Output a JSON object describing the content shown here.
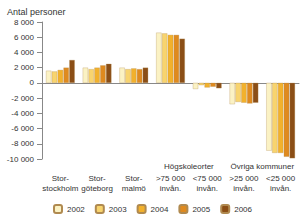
{
  "chart_data": {
    "type": "bar",
    "title": "Antal personer",
    "categories": [
      "Stor-\nstockholm",
      "Stor-\ngöteborg",
      "Stor-\nmalmö",
      ">75 000\ninvån.",
      "<75 000\ninvån.",
      ">25 000\ninvån.",
      "<25 000\ninvån."
    ],
    "annotations": [
      {
        "text": "Högskoleorter",
        "categories": [
          ">75 000\ninvån.",
          "<75 000\ninvån."
        ]
      },
      {
        "text": "Övriga kommuner",
        "categories": [
          ">25 000\ninvån.",
          "<25 000\ninvån."
        ]
      }
    ],
    "series": [
      {
        "name": "2002",
        "color": "#fbf2c4",
        "values": [
          1600,
          2000,
          2000,
          6600,
          -800,
          -2800,
          -8900
        ]
      },
      {
        "name": "2003",
        "color": "#f8d46e",
        "values": [
          1500,
          1800,
          1800,
          6500,
          -300,
          -2500,
          -9200
        ]
      },
      {
        "name": "2004",
        "color": "#f2b12c",
        "values": [
          1700,
          2000,
          1900,
          6300,
          -600,
          -2600,
          -9200
        ]
      },
      {
        "name": "2005",
        "color": "#df8a1f",
        "values": [
          2000,
          2300,
          1800,
          6300,
          -500,
          -2700,
          -9700
        ]
      },
      {
        "name": "2006",
        "color": "#8b4e16",
        "values": [
          3000,
          2500,
          2000,
          5800,
          -700,
          -2600,
          -9900
        ]
      }
    ],
    "ylim": [
      -10000,
      8000
    ],
    "yticks": [
      {
        "value": -10000,
        "label": "-10 000"
      },
      {
        "value": -8000,
        "label": "-8 000"
      },
      {
        "value": -6000,
        "label": "-6 000"
      },
      {
        "value": -4000,
        "label": "-4 000"
      },
      {
        "value": -2000,
        "label": "-2 000"
      },
      0,
      {
        "value": 2000,
        "label": "2 000"
      },
      {
        "value": 4000,
        "label": "4 000"
      },
      {
        "value": 6000,
        "label": "6 000"
      },
      {
        "value": 8000,
        "label": "8 000"
      }
    ],
    "grid": false,
    "legend": "bottom"
  }
}
